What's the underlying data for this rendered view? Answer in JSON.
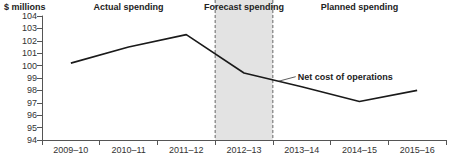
{
  "chart_data": {
    "type": "line",
    "y_label": "$ millions",
    "categories": [
      "2009–10",
      "2010–11",
      "2011–12",
      "2012–13",
      "2013–14",
      "2014–15",
      "2015–16"
    ],
    "series": [
      {
        "name": "Net cost of operations",
        "color": "#1a1a1a",
        "values": [
          100.2,
          101.5,
          102.5,
          99.4,
          98.3,
          97.1,
          98.0
        ]
      }
    ],
    "ylim": [
      94,
      104
    ],
    "yticks": [
      94,
      95,
      96,
      97,
      98,
      99,
      100,
      101,
      102,
      103,
      104
    ],
    "grid": false,
    "periods": [
      {
        "label": "Actual spending",
        "categories": [
          "2009–10",
          "2010–11",
          "2011–12"
        ]
      },
      {
        "label": "Forecast spending",
        "categories": [
          "2012–13"
        ]
      },
      {
        "label": "Planned spending",
        "categories": [
          "2013–14",
          "2014–15",
          "2015–16"
        ]
      }
    ]
  }
}
